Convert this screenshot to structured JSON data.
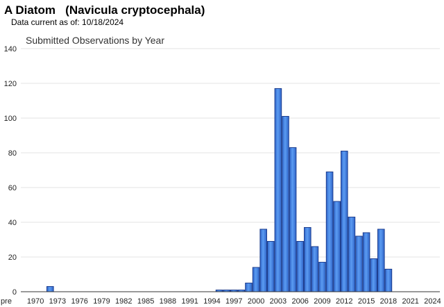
{
  "header": {
    "title": "A Diatom   (Navicula cryptocephala)",
    "subtitle": "Data current as of: 10/18/2024"
  },
  "chart_data": {
    "type": "bar",
    "title": "Submitted Observations by Year",
    "xlabel": "",
    "ylabel": "",
    "ylim": [
      0,
      140
    ],
    "y_ticks": [
      0,
      20,
      40,
      60,
      80,
      100,
      120,
      140
    ],
    "grid": true,
    "x_tick_labels": [
      "pre",
      "1970",
      "1973",
      "1976",
      "1979",
      "1982",
      "1985",
      "1988",
      "1991",
      "1994",
      "1997",
      "2000",
      "2003",
      "2006",
      "2009",
      "2012",
      "2015",
      "2018",
      "2021",
      "2024"
    ],
    "categories": [
      "pre",
      "1970",
      "1971",
      "1972",
      "1973",
      "1974",
      "1975",
      "1976",
      "1977",
      "1978",
      "1979",
      "1980",
      "1981",
      "1982",
      "1983",
      "1984",
      "1985",
      "1986",
      "1987",
      "1988",
      "1989",
      "1990",
      "1991",
      "1992",
      "1993",
      "1994",
      "1995",
      "1996",
      "1997",
      "1998",
      "1999",
      "2000",
      "2001",
      "2002",
      "2003",
      "2004",
      "2005",
      "2006",
      "2007",
      "2008",
      "2009",
      "2010",
      "2011",
      "2012",
      "2013",
      "2014",
      "2015",
      "2016",
      "2017",
      "2018",
      "2019",
      "2020",
      "2021",
      "2022",
      "2023",
      "2024"
    ],
    "values": [
      0,
      0,
      0,
      3,
      0,
      0,
      0,
      0,
      0,
      0,
      0,
      0,
      0,
      0,
      0,
      0,
      0,
      0,
      0,
      0,
      0,
      0,
      0,
      0,
      0,
      0,
      1,
      1,
      1,
      1,
      5,
      14,
      36,
      29,
      117,
      101,
      83,
      29,
      37,
      26,
      17,
      69,
      52,
      81,
      43,
      32,
      34,
      19,
      36,
      13,
      0,
      0,
      0,
      0,
      0,
      0
    ],
    "colors": {
      "bar_fill": "#3f7fe0",
      "bar_stroke": "#1f3f8f",
      "grid": "#e3e3e3",
      "axis": "#333333"
    }
  }
}
